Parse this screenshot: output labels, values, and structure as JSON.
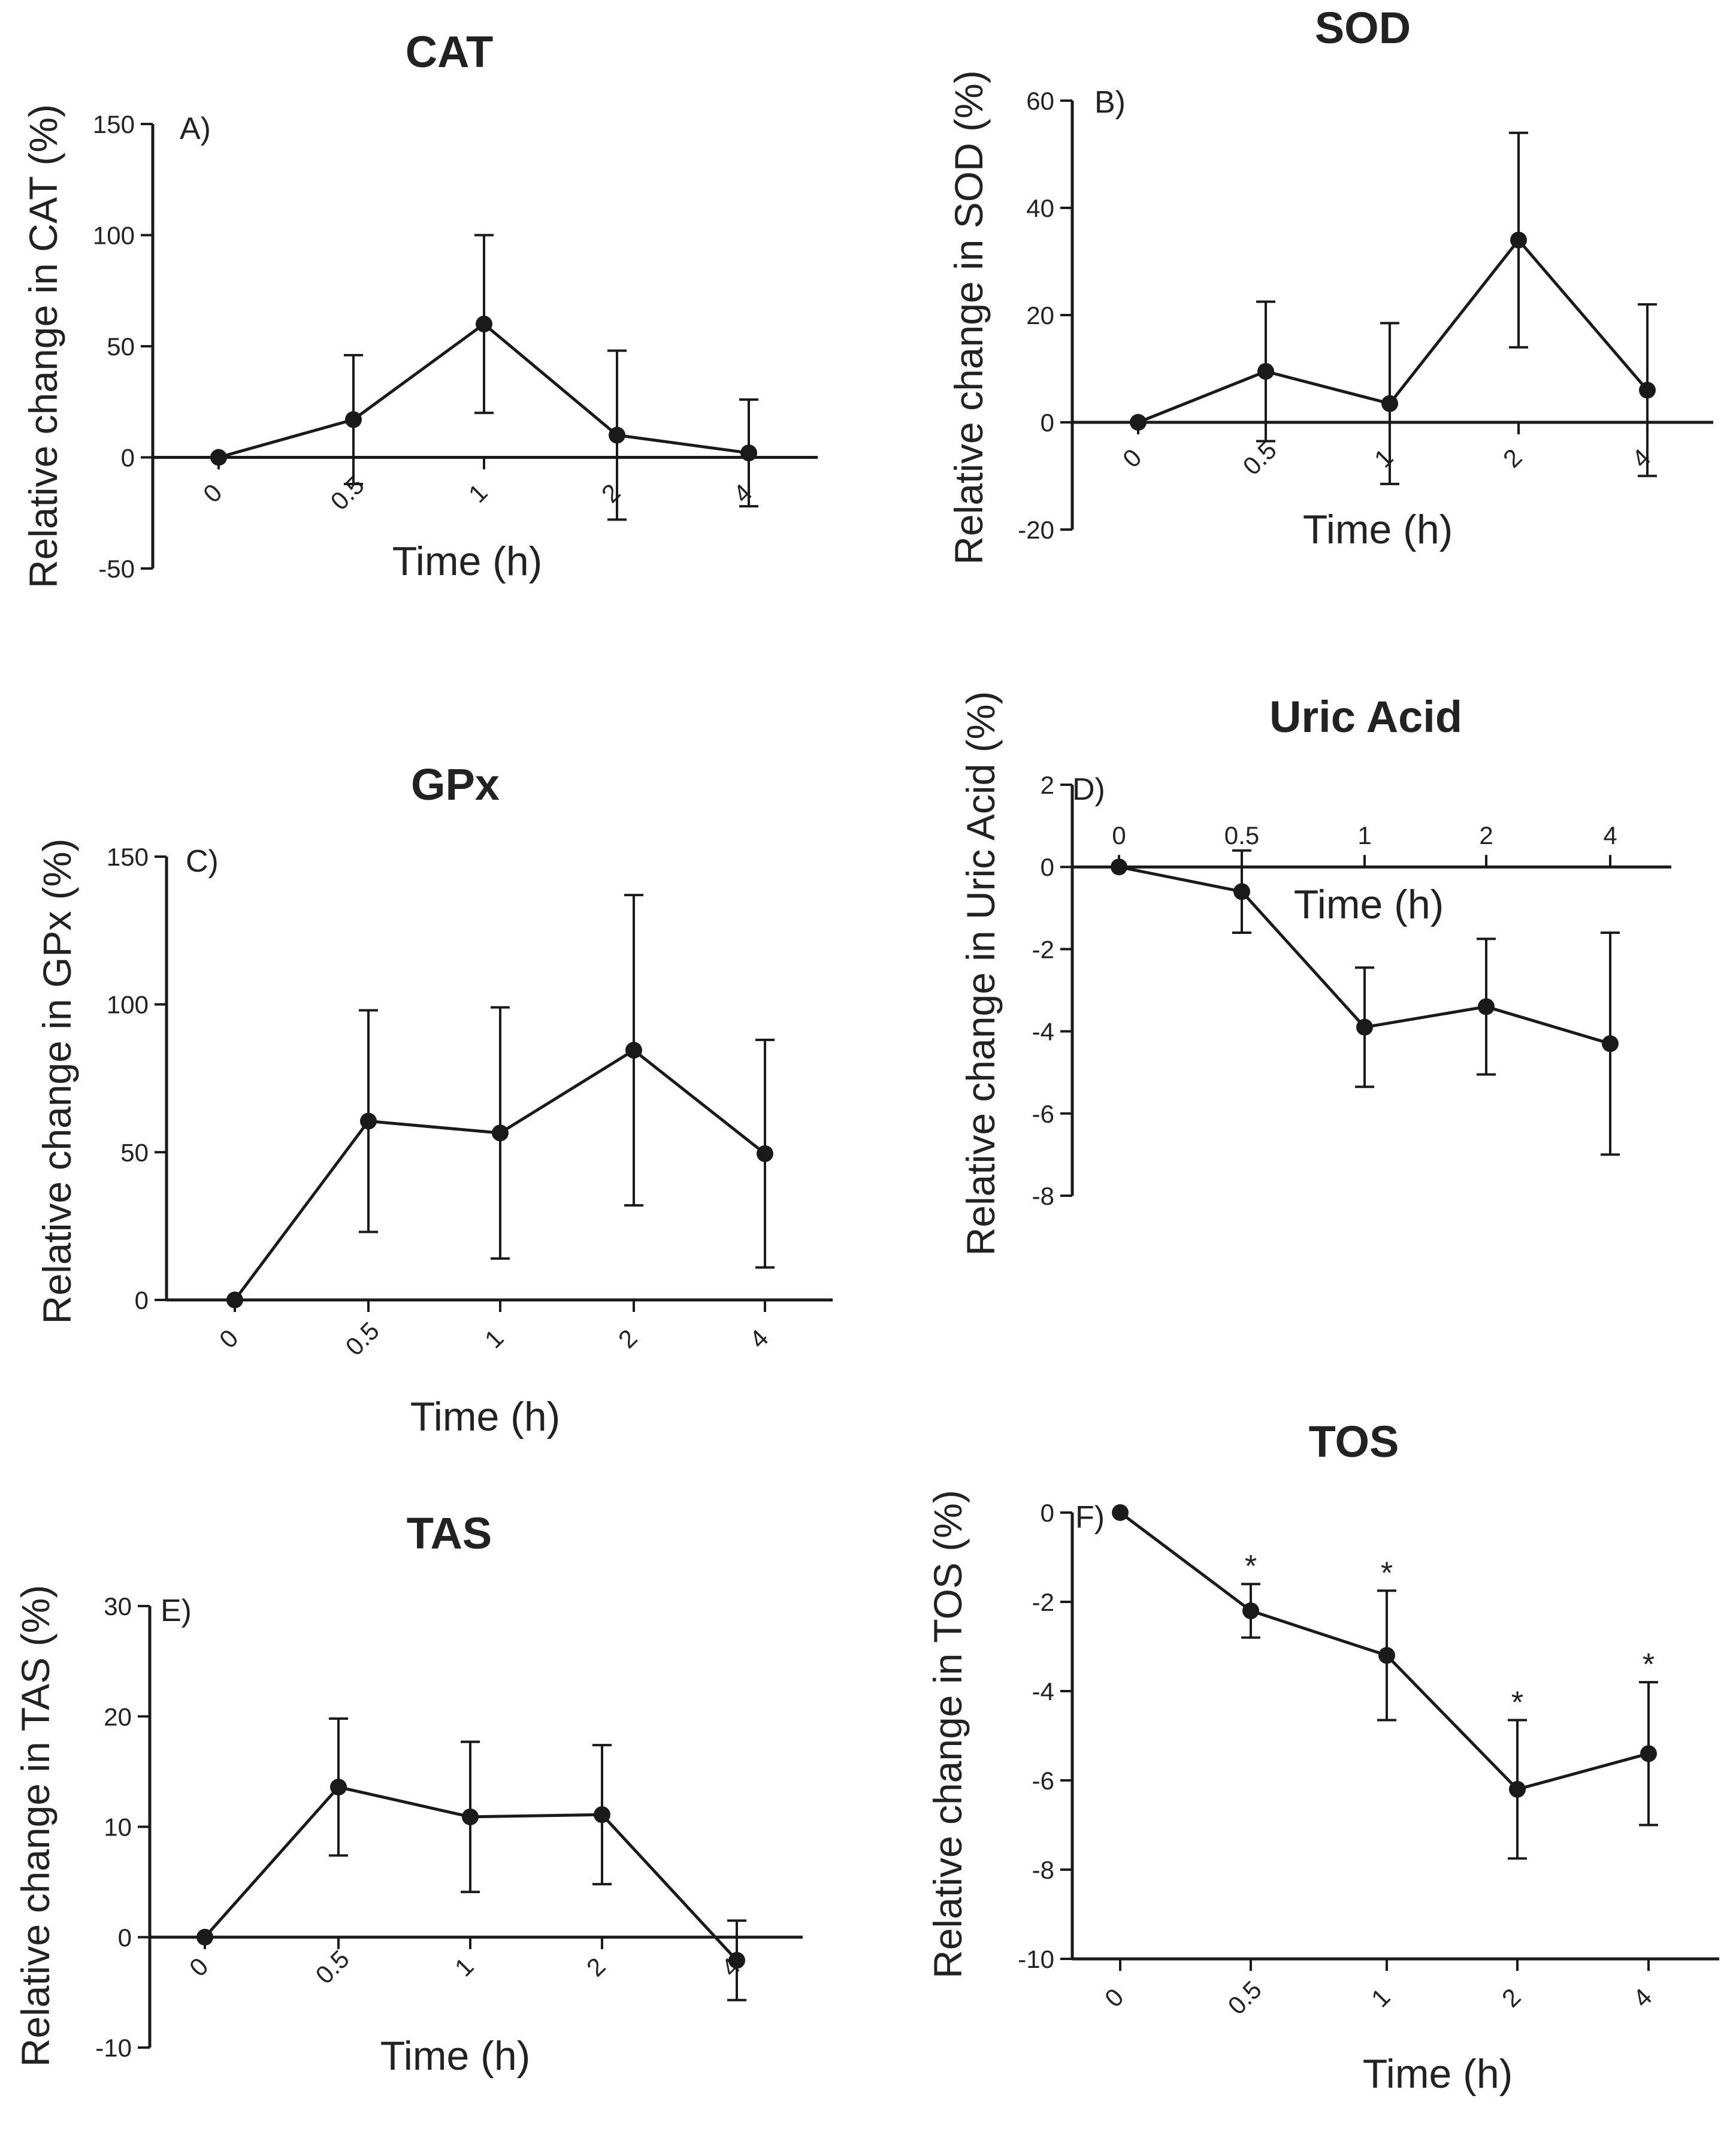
{
  "figure": {
    "background": "#ffffff",
    "line_color": "#1a1a1a"
  },
  "chart_data": [
    {
      "id": "A",
      "type": "line",
      "panel_label": "A)",
      "title": "CAT",
      "xlabel": "Time (h)",
      "ylabel": "Relative change in CAT (%)",
      "categories": [
        "0",
        "0.5",
        "1",
        "2",
        "4"
      ],
      "yticks": [
        "150",
        "100",
        "50",
        "0",
        "-50"
      ],
      "ylim": [
        -50,
        150
      ],
      "x_axis_at": 0,
      "xtick_style": "rotated",
      "values": [
        0,
        17,
        60,
        10,
        2
      ],
      "error": [
        0,
        29,
        40,
        38,
        24
      ],
      "significance": [
        "",
        "",
        "",
        "",
        ""
      ]
    },
    {
      "id": "B",
      "type": "line",
      "panel_label": "B)",
      "title": "SOD",
      "xlabel": "Time (h)",
      "ylabel": "Relative change in SOD (%)",
      "categories": [
        "0",
        "0.5",
        "1",
        "2",
        "4"
      ],
      "yticks": [
        "60",
        "40",
        "20",
        "0",
        "-20"
      ],
      "ylim": [
        -20,
        60
      ],
      "x_axis_at": 0,
      "xtick_style": "rotated",
      "values": [
        0,
        9.5,
        3.5,
        34,
        6
      ],
      "error": [
        0,
        13,
        15,
        20,
        16
      ],
      "significance": [
        "",
        "",
        "",
        "",
        ""
      ]
    },
    {
      "id": "C",
      "type": "line",
      "panel_label": "C)",
      "title": "GPx",
      "xlabel": "Time (h)",
      "ylabel": "Relative change in GPx (%)",
      "categories": [
        "0",
        "0.5",
        "1",
        "2",
        "4"
      ],
      "yticks": [
        "150",
        "100",
        "50",
        "0"
      ],
      "ylim": [
        0,
        150
      ],
      "x_axis_at": 0,
      "xtick_style": "rotated",
      "values": [
        0,
        60.5,
        56.5,
        84.5,
        49.5
      ],
      "error": [
        0,
        37.5,
        42.5,
        52.5,
        38.5
      ],
      "significance": [
        "",
        "",
        "",
        "",
        ""
      ]
    },
    {
      "id": "D",
      "type": "line",
      "panel_label": "D)",
      "title": "Uric Acid",
      "xlabel": "Time (h)",
      "ylabel": "Relative change in Uric Acid (%)",
      "categories": [
        "0",
        "0.5",
        "1",
        "2",
        "4"
      ],
      "yticks": [
        "2",
        "0",
        "-2",
        "-4",
        "-6",
        "-8"
      ],
      "ylim": [
        -8,
        2
      ],
      "x_axis_at": 0,
      "xtick_style": "top",
      "values": [
        0,
        -0.6,
        -3.9,
        -3.4,
        -4.3
      ],
      "error": [
        0,
        1.0,
        1.45,
        1.65,
        2.7
      ],
      "significance": [
        "",
        "",
        "",
        "",
        ""
      ]
    },
    {
      "id": "E",
      "type": "line",
      "panel_label": "E)",
      "title": "TAS",
      "xlabel": "Time (h)",
      "ylabel": "Relative change in TAS (%)",
      "categories": [
        "0",
        "0.5",
        "1",
        "2",
        "4"
      ],
      "yticks": [
        "30",
        "20",
        "10",
        "0",
        "-10"
      ],
      "ylim": [
        -10,
        30
      ],
      "x_axis_at": 0,
      "xtick_style": "rotated",
      "values": [
        0,
        13.6,
        10.9,
        11.1,
        -2.1
      ],
      "error": [
        0,
        6.2,
        6.8,
        6.3,
        3.6
      ],
      "significance": [
        "",
        "",
        "",
        "",
        ""
      ]
    },
    {
      "id": "F",
      "type": "line",
      "panel_label": "F)",
      "title": "TOS",
      "xlabel": "Time (h)",
      "ylabel": "Relative change in TOS (%)",
      "categories": [
        "0",
        "0.5",
        "1",
        "2",
        "4"
      ],
      "yticks": [
        "0",
        "-2",
        "-4",
        "-6",
        "-8",
        "-10"
      ],
      "ylim": [
        -10,
        0
      ],
      "x_axis_at": -10,
      "xtick_style": "rotated",
      "values": [
        0,
        -2.2,
        -3.2,
        -6.2,
        -5.4
      ],
      "error": [
        0,
        0.6,
        1.45,
        1.55,
        1.6
      ],
      "significance": [
        "",
        "*",
        "*",
        "*",
        "*"
      ]
    }
  ]
}
